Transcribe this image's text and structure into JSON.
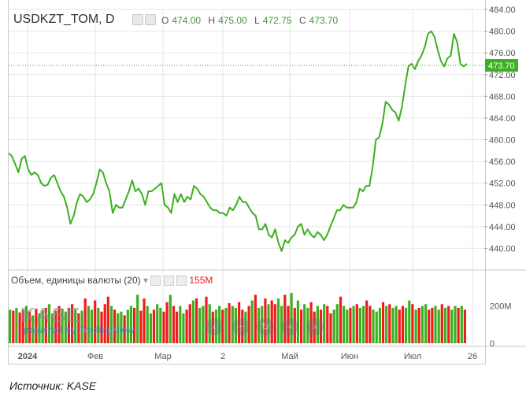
{
  "header": {
    "symbol": "USDKZT_TOM, D",
    "open_key": "O",
    "open": "474.00",
    "high_key": "H",
    "high": "475.00",
    "low_key": "L",
    "low": "472.75",
    "close_key": "C",
    "close": "473.70"
  },
  "volume_panel": {
    "title": "Объем, единицы валюты (20)",
    "value": "155M",
    "axis_ticks": [
      "200M",
      "0"
    ]
  },
  "price_label": "473.70",
  "watermark": {
    "brand": "KASE",
    "powered": "powered by TradingView"
  },
  "caption": "Источник: KASE",
  "colors": {
    "up": "#3cb01e",
    "down": "#ee1c1c",
    "line": "#3cb01e",
    "price_tag": "#3cb01e",
    "grid": "#e6e6e6"
  },
  "chart_data": {
    "type": "line",
    "title": "USDKZT_TOM, D",
    "ylim": [
      436,
      484
    ],
    "yticks": [
      440,
      444,
      448,
      452,
      456,
      460,
      464,
      468,
      472,
      476,
      480,
      484
    ],
    "x_tick_labels": [
      "2024",
      "Фев",
      "Мар",
      "2",
      "Май",
      "Июн",
      "Июл",
      "26"
    ],
    "last_price": 473.7,
    "series": [
      {
        "values": [
          457.5,
          457.0,
          455.5,
          454.0,
          456.5,
          457.0,
          454.5,
          453.5,
          454.0,
          453.5,
          452.0,
          451.5,
          451.7,
          453.0,
          453.5,
          452.0,
          450.5,
          449.5,
          447.5,
          444.5,
          446.0,
          448.5,
          450.0,
          449.5,
          448.5,
          449.0,
          450.0,
          452.0,
          454.5,
          454.0,
          452.0,
          450.5,
          446.5,
          448.0,
          447.5,
          447.5,
          449.0,
          450.5,
          452.5,
          450.5,
          451.0,
          450.0,
          448.0,
          450.5,
          450.5,
          451.0,
          451.5,
          452.0,
          448.0,
          447.5,
          446.5,
          450.0,
          448.5,
          450.0,
          448.5,
          449.5,
          449.0,
          451.5,
          451.0,
          450.0,
          449.5,
          448.5,
          447.5,
          447.0,
          447.0,
          446.5,
          446.5,
          446.0,
          447.5,
          447.0,
          448.0,
          449.5,
          448.5,
          448.5,
          447.5,
          446.5,
          446.0,
          443.5,
          443.5,
          444.5,
          442.5,
          442.0,
          443.5,
          441.0,
          439.5,
          441.5,
          441.0,
          442.0,
          442.5,
          444.0,
          444.5,
          442.5,
          443.5,
          442.5,
          442.0,
          443.0,
          442.5,
          441.5,
          442.5,
          444.0,
          445.5,
          447.0,
          447.0,
          448.0,
          447.5,
          447.5,
          447.5,
          448.5,
          451.0,
          450.5,
          451.5,
          451.5,
          455.0,
          460.0,
          460.5,
          463.0,
          467.0,
          466.5,
          465.5,
          465.0,
          463.5,
          466.0,
          470.0,
          473.5,
          474.0,
          473.0,
          474.5,
          475.5,
          477.0,
          479.5,
          480.0,
          479.0,
          476.5,
          474.5,
          473.5,
          475.0,
          475.5,
          479.5,
          478.0,
          474.0,
          473.5,
          474.0
        ]
      }
    ],
    "volume": {
      "ylim": [
        0,
        300
      ],
      "values": [
        180,
        175,
        190,
        165,
        180,
        200,
        170,
        150,
        185,
        160,
        175,
        190,
        210,
        160,
        175,
        200,
        185,
        170,
        190,
        210,
        180,
        160,
        175,
        240,
        200,
        180,
        230,
        190,
        170,
        210,
        250,
        200,
        180,
        160,
        170,
        150,
        180,
        200,
        190,
        260,
        175,
        240,
        200,
        160,
        180,
        210,
        190,
        170,
        220,
        260,
        200,
        170,
        200,
        160,
        180,
        210,
        230,
        240,
        190,
        200,
        250,
        210,
        170,
        180,
        200,
        180,
        190,
        215,
        200,
        190,
        220,
        180,
        170,
        200,
        230,
        260,
        190,
        200,
        240,
        210,
        230,
        210,
        240,
        200,
        260,
        200,
        270,
        190,
        230,
        180,
        210,
        190,
        220,
        170,
        200,
        180,
        210,
        200,
        160,
        180,
        210,
        250,
        200,
        180,
        190,
        200,
        210,
        190,
        200,
        230,
        200,
        180,
        170,
        190,
        220,
        200,
        210,
        190,
        200,
        180,
        200,
        190,
        230,
        210,
        180,
        190,
        200,
        210,
        180,
        190,
        200,
        180,
        210,
        190,
        200,
        180,
        200,
        190,
        200,
        180
      ],
      "direction": [
        "u",
        "d",
        "u",
        "d",
        "d",
        "u",
        "d",
        "u",
        "d",
        "u",
        "u",
        "d",
        "u",
        "u",
        "d",
        "d",
        "u",
        "u",
        "d",
        "d",
        "u",
        "d",
        "u",
        "d",
        "u",
        "u",
        "d",
        "u",
        "d",
        "d",
        "d",
        "u",
        "d",
        "u",
        "u",
        "d",
        "u",
        "u",
        "d",
        "u",
        "d",
        "d",
        "u",
        "u",
        "d",
        "u",
        "u",
        "d",
        "d",
        "u",
        "d",
        "d",
        "u",
        "u",
        "d",
        "d",
        "u",
        "d",
        "u",
        "u",
        "d",
        "u",
        "d",
        "u",
        "u",
        "d",
        "u",
        "d",
        "u",
        "u",
        "d",
        "d",
        "u",
        "d",
        "u",
        "d",
        "u",
        "u",
        "d",
        "u",
        "d",
        "d",
        "u",
        "u",
        "d",
        "d",
        "u",
        "d",
        "u",
        "d",
        "u",
        "u",
        "d",
        "d",
        "u",
        "d",
        "u",
        "d",
        "d",
        "u",
        "u",
        "d",
        "u",
        "u",
        "d",
        "u",
        "d",
        "u",
        "u",
        "d",
        "d",
        "u",
        "u",
        "u",
        "d",
        "u",
        "d",
        "u",
        "u",
        "d",
        "d",
        "u",
        "u",
        "d",
        "u",
        "d",
        "u",
        "u",
        "d",
        "d",
        "u",
        "u",
        "d",
        "u",
        "d",
        "u",
        "u",
        "d",
        "u",
        "d"
      ]
    }
  }
}
